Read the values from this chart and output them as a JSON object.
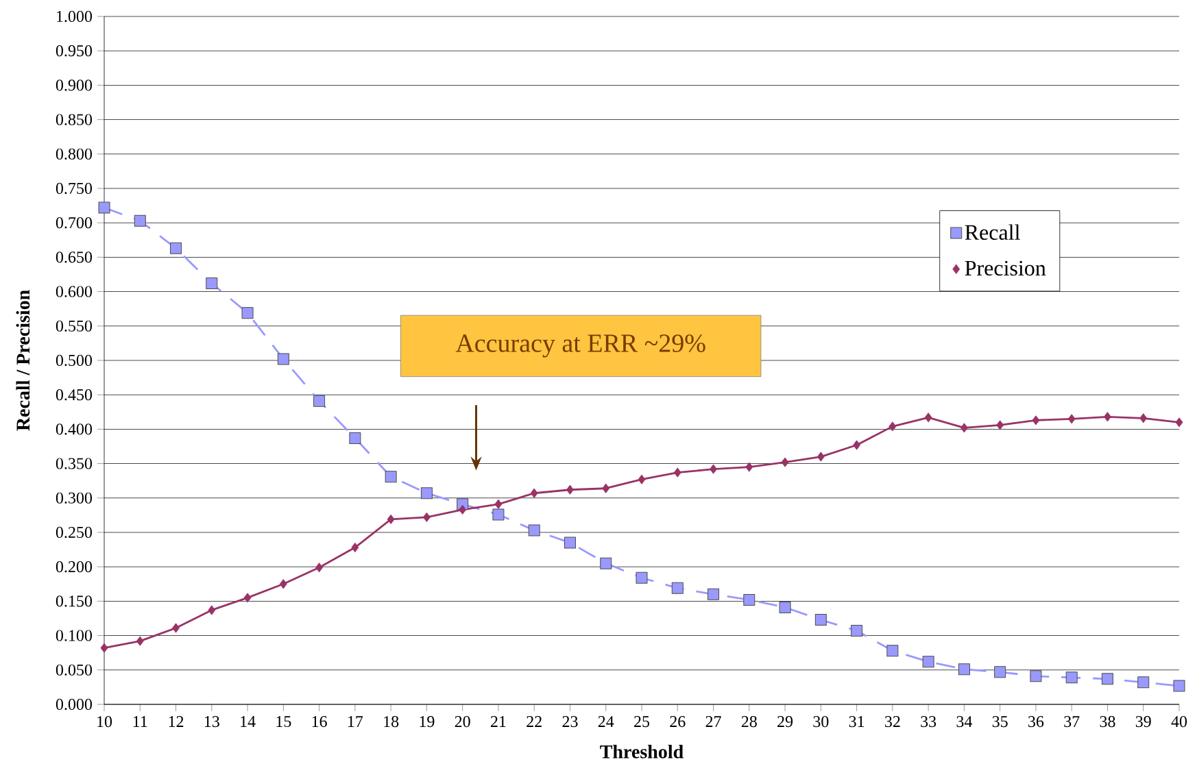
{
  "chart_data": {
    "type": "line",
    "xlabel": "Threshold",
    "ylabel": "Recall / Precision",
    "x": [
      10,
      11,
      12,
      13,
      14,
      15,
      16,
      17,
      18,
      19,
      20,
      21,
      22,
      23,
      24,
      25,
      26,
      27,
      28,
      29,
      30,
      31,
      32,
      33,
      34,
      35,
      36,
      37,
      38,
      39,
      40
    ],
    "series": [
      {
        "name": "Recall",
        "color": "#9999ff",
        "marker": "square",
        "line_style": "dashed",
        "values": [
          0.722,
          0.703,
          0.663,
          0.612,
          0.569,
          0.502,
          0.441,
          0.387,
          0.331,
          0.307,
          0.291,
          0.276,
          0.253,
          0.235,
          0.205,
          0.184,
          0.169,
          0.16,
          0.152,
          0.141,
          0.123,
          0.107,
          0.078,
          0.062,
          0.051,
          0.047,
          0.041,
          0.039,
          0.037,
          0.032,
          0.027
        ]
      },
      {
        "name": "Precision",
        "color": "#993366",
        "marker": "diamond",
        "line_style": "solid",
        "values": [
          0.082,
          0.092,
          0.111,
          0.137,
          0.155,
          0.175,
          0.199,
          0.228,
          0.269,
          0.272,
          0.283,
          0.291,
          0.307,
          0.312,
          0.314,
          0.327,
          0.337,
          0.342,
          0.345,
          0.352,
          0.36,
          0.377,
          0.404,
          0.417,
          0.402,
          0.406,
          0.413,
          0.415,
          0.418,
          0.416,
          0.41
        ]
      }
    ],
    "xlim": [
      10,
      40
    ],
    "xticks": [
      10,
      11,
      12,
      13,
      14,
      15,
      16,
      17,
      18,
      19,
      20,
      21,
      22,
      23,
      24,
      25,
      26,
      27,
      28,
      29,
      30,
      31,
      32,
      33,
      34,
      35,
      36,
      37,
      38,
      39,
      40
    ],
    "ylim": [
      0,
      1
    ],
    "yticks": [
      {
        "value": 0,
        "label": "0.000"
      },
      {
        "value": 0.05,
        "label": "0.050"
      },
      {
        "value": 0.1,
        "label": "0.100"
      },
      {
        "value": 0.15,
        "label": "0.150"
      },
      {
        "value": 0.2,
        "label": "0.200"
      },
      {
        "value": 0.25,
        "label": "0.250"
      },
      {
        "value": 0.3,
        "label": "0.300"
      },
      {
        "value": 0.35,
        "label": "0.350"
      },
      {
        "value": 0.4,
        "label": "0.400"
      },
      {
        "value": 0.45,
        "label": "0.450"
      },
      {
        "value": 0.5,
        "label": "0.500"
      },
      {
        "value": 0.55,
        "label": "0.550"
      },
      {
        "value": 0.6,
        "label": "0.600"
      },
      {
        "value": 0.65,
        "label": "0.650"
      },
      {
        "value": 0.7,
        "label": "0.700"
      },
      {
        "value": 0.75,
        "label": "0.750"
      },
      {
        "value": 0.8,
        "label": "0.800"
      },
      {
        "value": 0.85,
        "label": "0.850"
      },
      {
        "value": 0.9,
        "label": "0.900"
      },
      {
        "value": 0.95,
        "label": "0.950"
      },
      {
        "value": 1,
        "label": "1.000"
      }
    ],
    "grid": "y",
    "legend": "right",
    "annotations": [
      "Accuracy at ERR ~29%"
    ]
  }
}
